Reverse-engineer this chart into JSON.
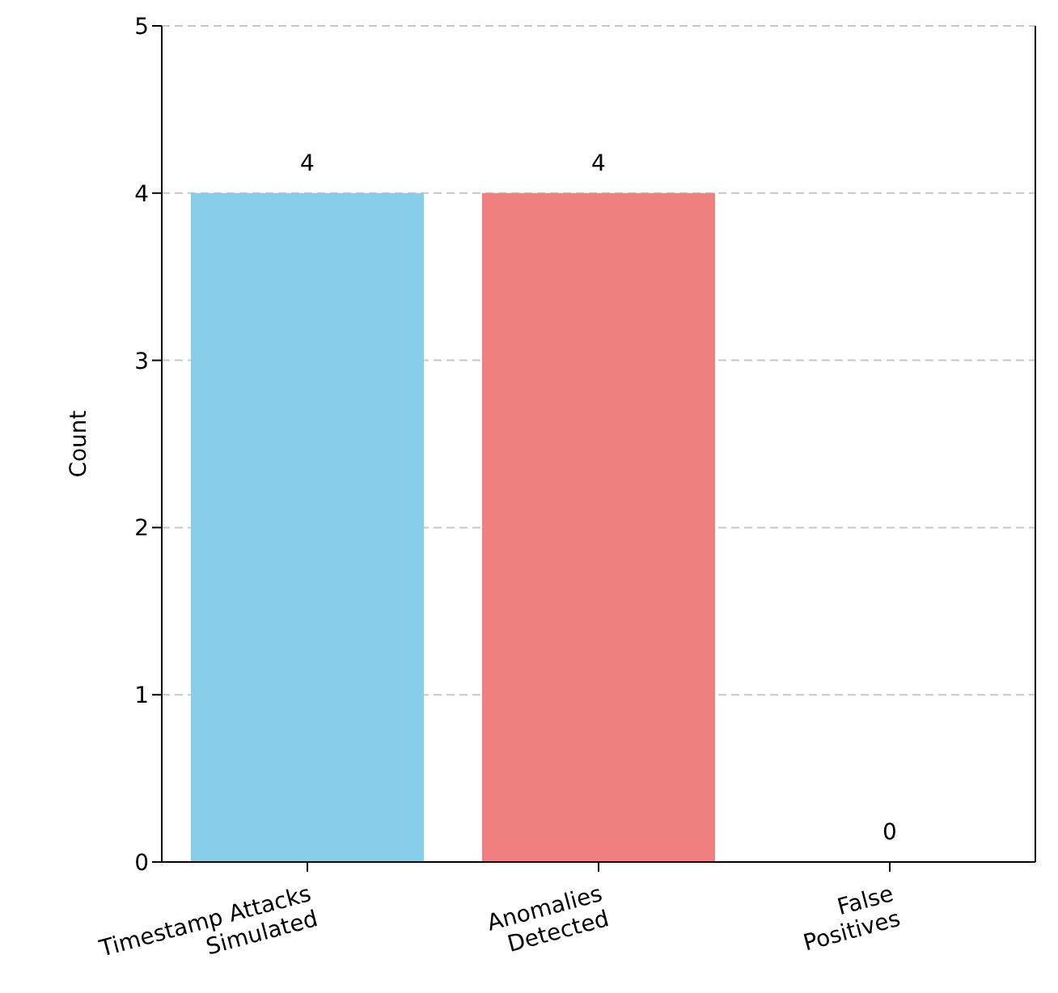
{
  "chart_data": {
    "type": "bar",
    "ylabel": "Count",
    "categories": [
      "Timestamp Attacks\nSimulated",
      "Anomalies\nDetected",
      "False\nPositives"
    ],
    "values": [
      4,
      4,
      0
    ],
    "colors": [
      "#87ceeb",
      "#f08080",
      "#90ee90"
    ],
    "ylim": [
      0,
      5
    ],
    "yticks": [
      0,
      1,
      2,
      3,
      4,
      5
    ],
    "grid": "y",
    "data_labels": true
  }
}
